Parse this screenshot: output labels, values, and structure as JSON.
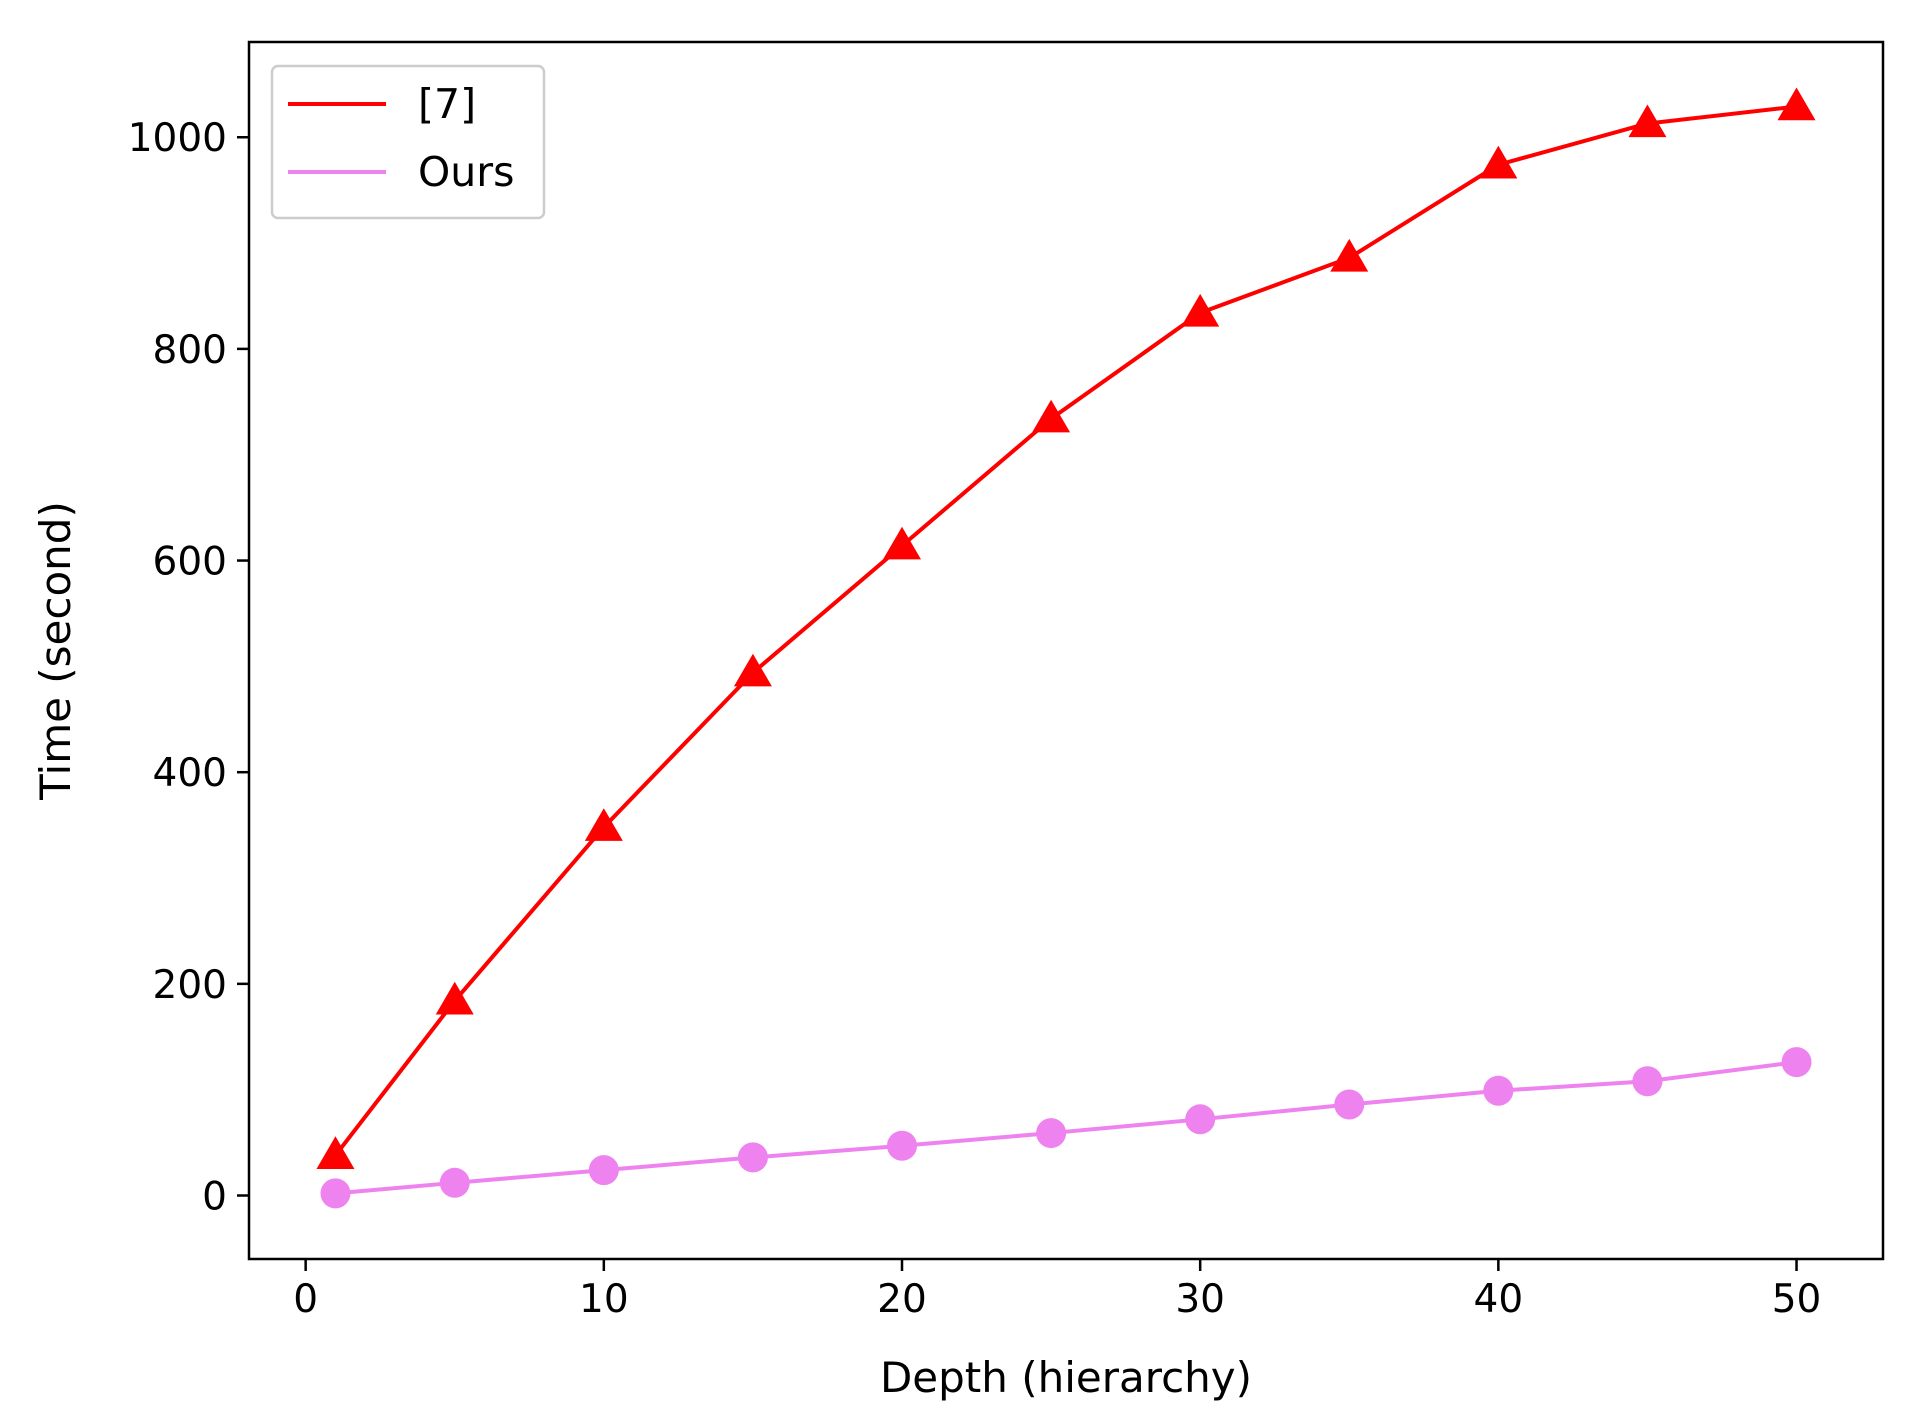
{
  "chart_data": {
    "type": "line",
    "title": "",
    "xlabel": "Depth (hierarchy)",
    "ylabel": "Time (second)",
    "xlim": [
      -1.9,
      52.9
    ],
    "ylim": [
      -60,
      1090
    ],
    "xticks": [
      0,
      10,
      20,
      30,
      40,
      50
    ],
    "yticks": [
      0,
      200,
      400,
      600,
      800,
      1000
    ],
    "x": [
      1,
      5,
      10,
      15,
      20,
      25,
      30,
      35,
      40,
      45,
      50
    ],
    "series": [
      {
        "name": "[7]",
        "color": "#ff0000",
        "marker": "triangle",
        "values": [
          38,
          184,
          348,
          494,
          614,
          734,
          834,
          886,
          974,
          1013,
          1029
        ]
      },
      {
        "name": "Ours",
        "color": "#ee82ee",
        "marker": "circle",
        "values": [
          2,
          12,
          24,
          36,
          47,
          59,
          72,
          86,
          99,
          108,
          126
        ]
      }
    ],
    "legend": {
      "position": "top-left"
    },
    "grid": false
  }
}
